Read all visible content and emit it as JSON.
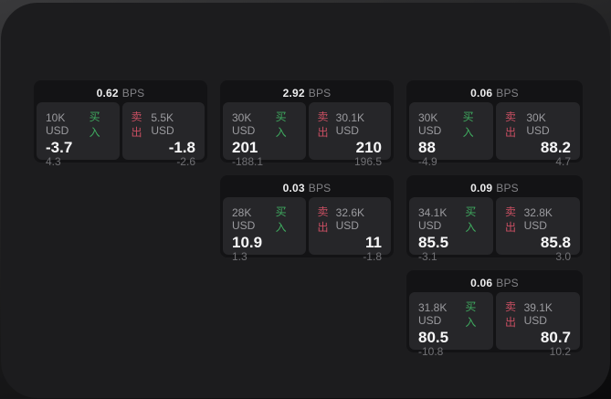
{
  "labels": {
    "bps_unit": "BPS",
    "buy": "买入",
    "sell": "卖出"
  },
  "colors": {
    "panel_bg": "#1c1c1e",
    "card_bg": "#131315",
    "tile_bg": "#262629",
    "buy_green": "#3fab5f",
    "sell_red": "#c94f62",
    "price_white": "#f7f7f8",
    "label_gray": "#9b9b9f",
    "delta_gray": "#707074"
  },
  "cards": [
    {
      "col": 1,
      "row": 1,
      "bps": "0.62",
      "buy": {
        "notional": "10K USD",
        "price": "-3.7",
        "delta": "4.3"
      },
      "sell": {
        "notional": "5.5K USD",
        "price": "-1.8",
        "delta": "-2.6"
      }
    },
    {
      "col": 2,
      "row": 1,
      "bps": "2.92",
      "buy": {
        "notional": "30K USD",
        "price": "201",
        "delta": "-188.1"
      },
      "sell": {
        "notional": "30.1K USD",
        "price": "210",
        "delta": "196.5"
      }
    },
    {
      "col": 3,
      "row": 1,
      "bps": "0.06",
      "buy": {
        "notional": "30K USD",
        "price": "88",
        "delta": "-4.9"
      },
      "sell": {
        "notional": "30K USD",
        "price": "88.2",
        "delta": "4.7"
      }
    },
    {
      "col": 2,
      "row": 2,
      "bps": "0.03",
      "buy": {
        "notional": "28K USD",
        "price": "10.9",
        "delta": "1.3"
      },
      "sell": {
        "notional": "32.6K USD",
        "price": "11",
        "delta": "-1.8"
      }
    },
    {
      "col": 3,
      "row": 2,
      "bps": "0.09",
      "buy": {
        "notional": "34.1K USD",
        "price": "85.5",
        "delta": "-3.1"
      },
      "sell": {
        "notional": "32.8K USD",
        "price": "85.8",
        "delta": "3.0"
      }
    },
    {
      "col": 3,
      "row": 3,
      "bps": "0.06",
      "buy": {
        "notional": "31.8K USD",
        "price": "80.5",
        "delta": "-10.8"
      },
      "sell": {
        "notional": "39.1K USD",
        "price": "80.7",
        "delta": "10.2"
      }
    }
  ]
}
